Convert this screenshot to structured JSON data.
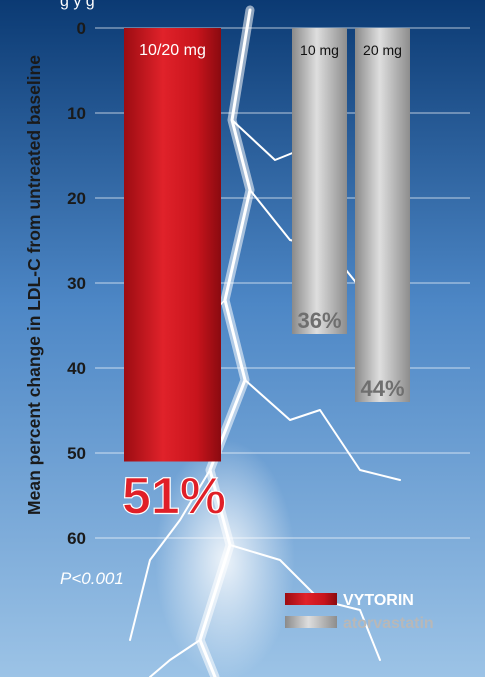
{
  "header_fragment": "g        y  g",
  "chart_data": {
    "type": "bar",
    "ylabel": "Mean percent change in LDL-C from untreated baseline",
    "ylim": [
      0,
      60
    ],
    "yticks": [
      "0",
      "10",
      "20",
      "30",
      "40",
      "50",
      "60"
    ],
    "y_inverted": true,
    "grid": true,
    "legend_position": "bottom-right",
    "series": [
      {
        "name": "VYTORIN",
        "color": "#c8141c",
        "bars": [
          {
            "label": "10/20 mg",
            "value": 51,
            "value_label": "51%"
          }
        ]
      },
      {
        "name": "atorvastatin",
        "color": "#a8a8a8",
        "bars": [
          {
            "label": "10 mg",
            "value": 36,
            "value_label": "36%"
          },
          {
            "label": "20 mg",
            "value": 44,
            "value_label": "44%"
          }
        ]
      }
    ],
    "annotation": "P<0.001"
  },
  "colors": {
    "background_top": "#0b3a73",
    "background_bottom": "#9cc3e6",
    "grid": "#ffffff",
    "axis_text": "#1a1a1a"
  }
}
